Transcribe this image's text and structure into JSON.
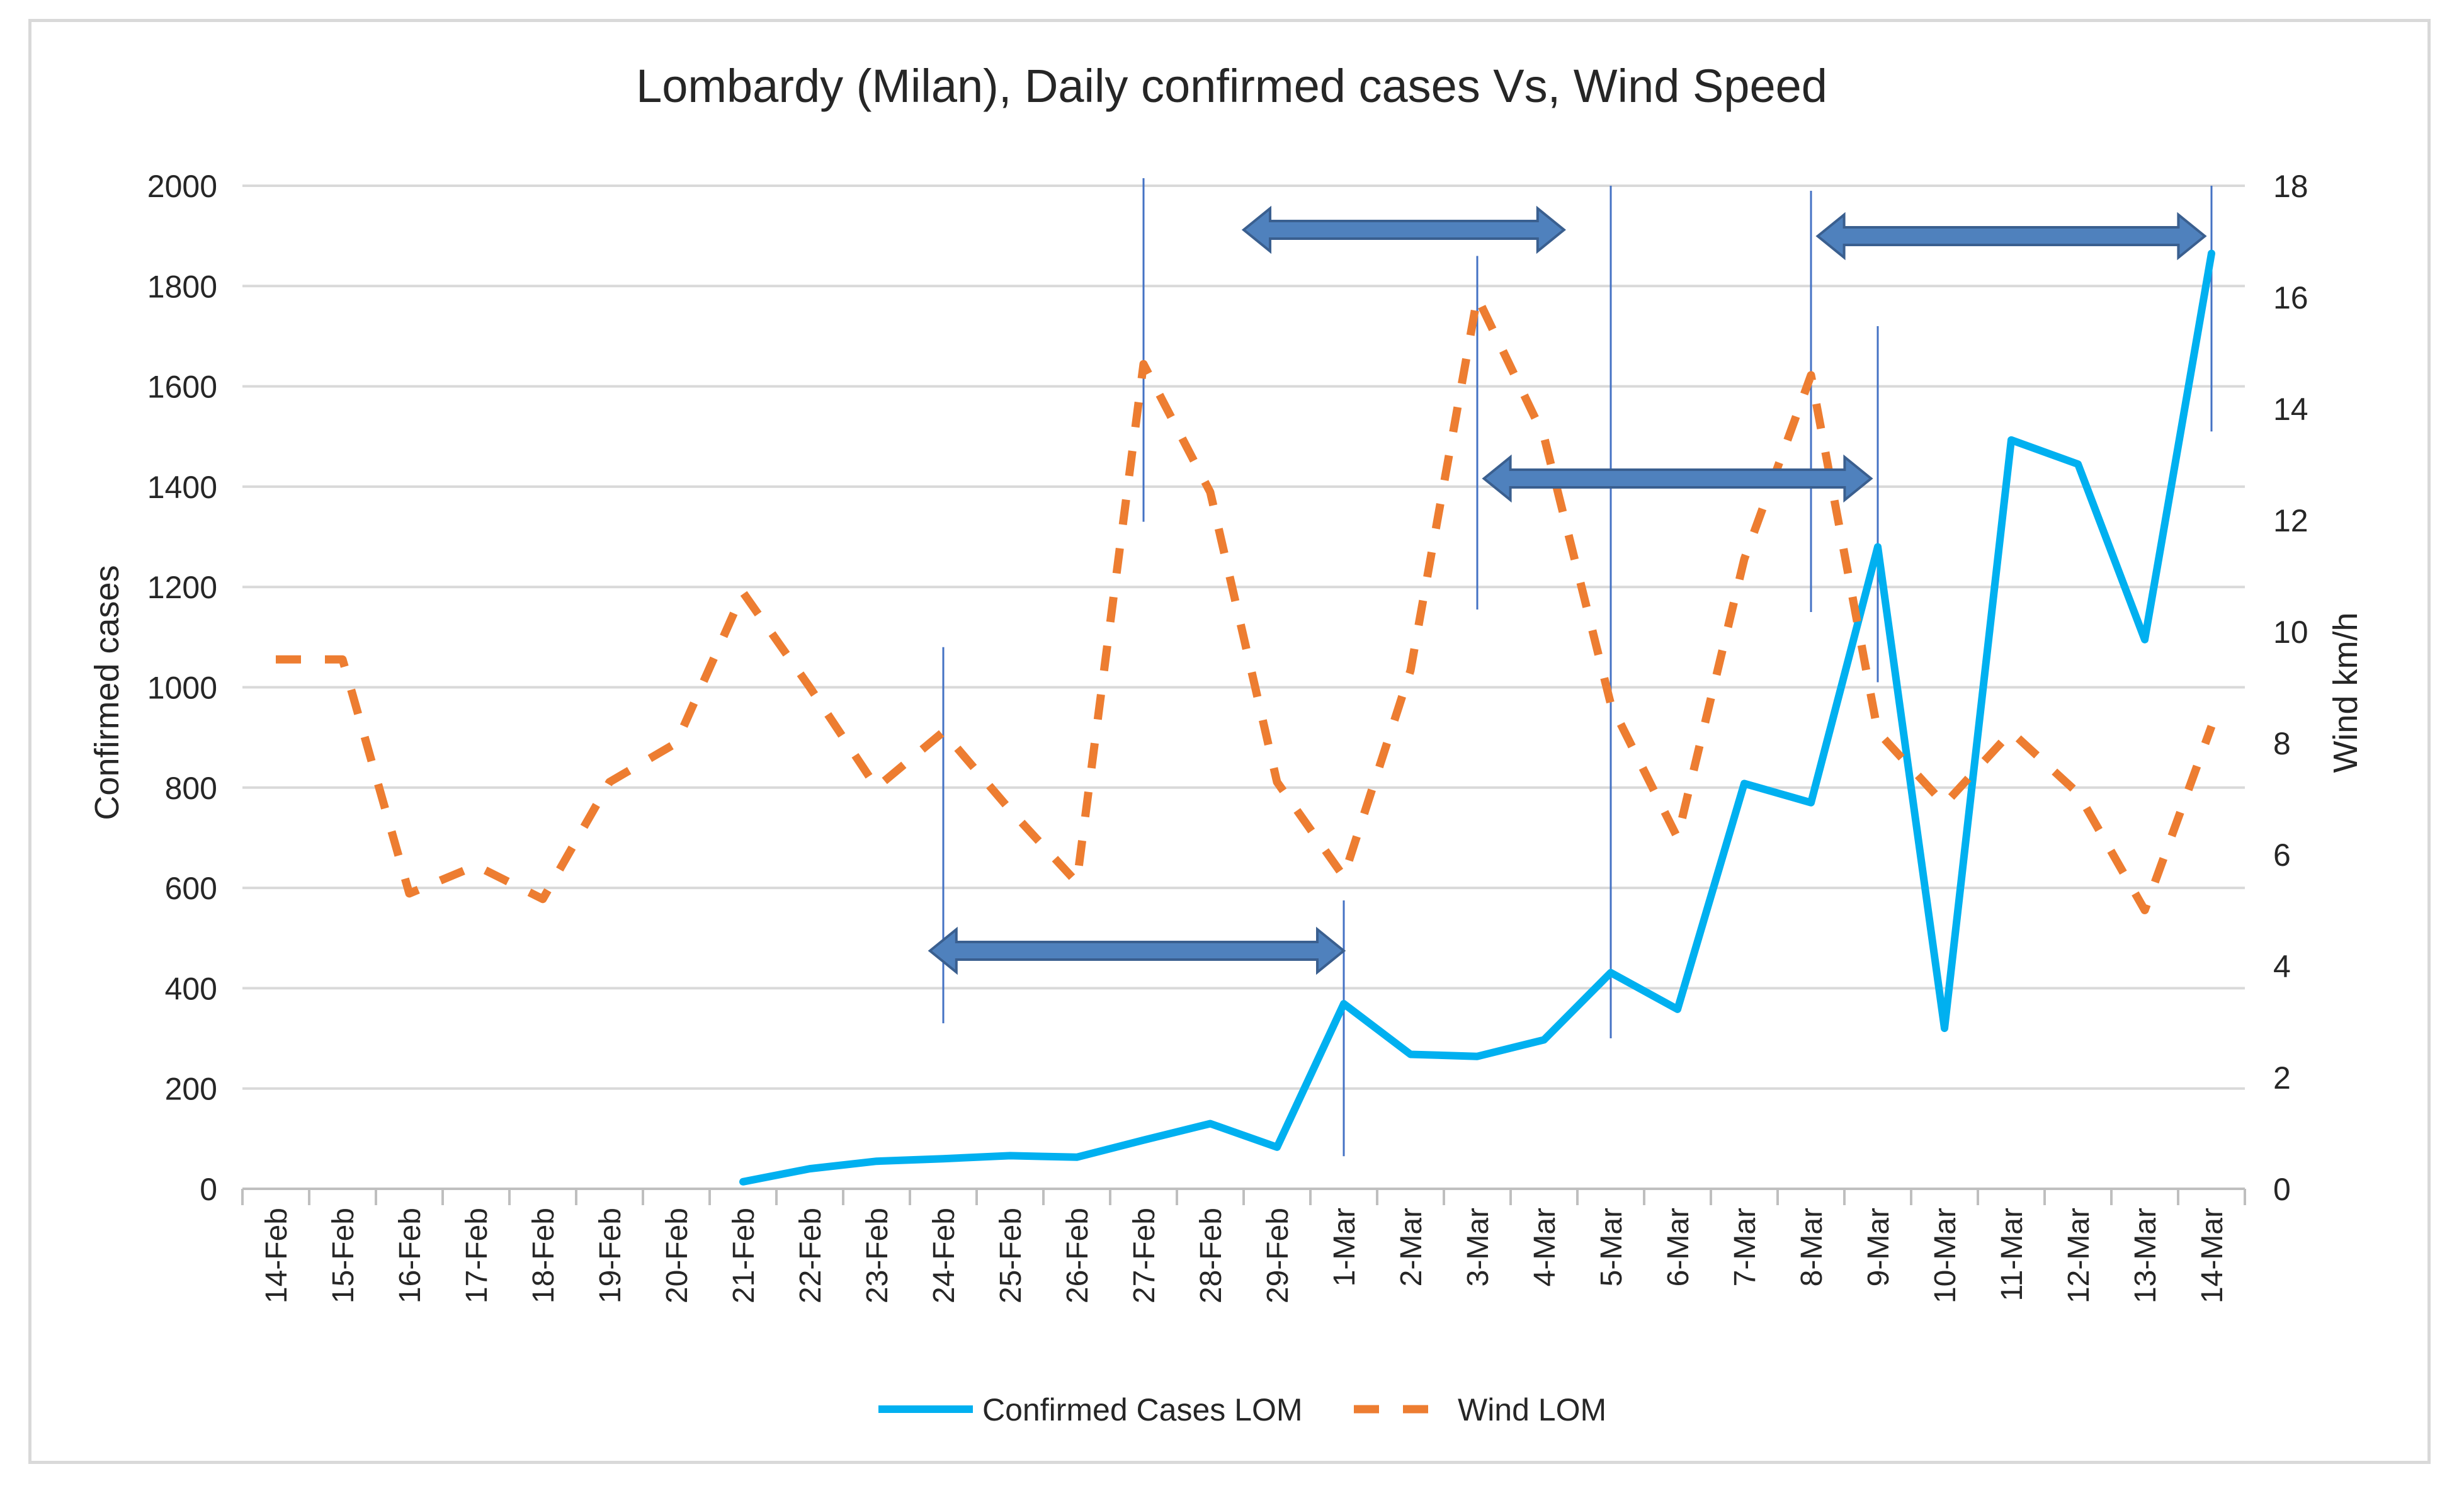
{
  "chart_data": {
    "type": "line",
    "title": "Lombardy (Milan), Daily confirmed cases Vs, Wind Speed",
    "xlabel": "",
    "ylabel": "Confirmed cases",
    "y2label": "Wind km/h",
    "ylim": [
      0,
      2000
    ],
    "y2lim": [
      0,
      18
    ],
    "yticks": [
      "0",
      "200",
      "400",
      "600",
      "800",
      "1000",
      "1200",
      "1400",
      "1600",
      "1800",
      "2000"
    ],
    "y2ticks": [
      "0",
      "2",
      "4",
      "6",
      "8",
      "10",
      "12",
      "14",
      "16",
      "18"
    ],
    "categories": [
      "14-Feb",
      "15-Feb",
      "16-Feb",
      "17-Feb",
      "18-Feb",
      "19-Feb",
      "20-Feb",
      "21-Feb",
      "22-Feb",
      "23-Feb",
      "24-Feb",
      "25-Feb",
      "26-Feb",
      "27-Feb",
      "28-Feb",
      "29-Feb",
      "1-Mar",
      "2-Mar",
      "3-Mar",
      "4-Mar",
      "5-Mar",
      "6-Mar",
      "7-Mar",
      "8-Mar",
      "9-Mar",
      "10-Mar",
      "11-Mar",
      "12-Mar",
      "13-Mar",
      "14-Mar"
    ],
    "series": [
      {
        "name": "Confirmed Cases LOM",
        "axis": "left",
        "color": "#00b0f0",
        "style": "solid",
        "values": [
          null,
          null,
          null,
          null,
          null,
          null,
          null,
          14,
          40,
          55,
          60,
          66,
          63,
          97,
          130,
          83,
          369,
          268,
          264,
          297,
          431,
          358,
          808,
          770,
          1280,
          320,
          1493,
          1445,
          1095,
          1865
        ]
      },
      {
        "name": "Wind LOM",
        "axis": "right",
        "color": "#ed7d31",
        "style": "dashed",
        "values": [
          9.5,
          9.5,
          5.3,
          5.8,
          5.2,
          7.3,
          8.0,
          10.7,
          9.0,
          7.2,
          8.2,
          6.8,
          5.5,
          14.8,
          12.5,
          7.3,
          5.6,
          9.3,
          16.0,
          13.5,
          8.7,
          6.3,
          11.3,
          14.6,
          8.2,
          6.9,
          8.2,
          7.1,
          5.0,
          8.3
        ]
      }
    ],
    "legend": "bottom",
    "annotations": {
      "vertical_markers": [
        "24-Feb",
        "27-Feb",
        "1-Mar",
        "3-Mar",
        "5-Mar",
        "8-Mar",
        "9-Mar",
        "14-Mar"
      ],
      "double_arrows": [
        {
          "from": "24-Feb",
          "to": "1-Mar"
        },
        {
          "from": "28-Feb",
          "to": "4-Mar"
        },
        {
          "from": "3-Mar",
          "to": "9-Mar"
        },
        {
          "from": "8-Mar",
          "to": "14-Mar"
        }
      ],
      "marker_color": "#4472c4",
      "arrow_color": "#4f81bd"
    }
  }
}
